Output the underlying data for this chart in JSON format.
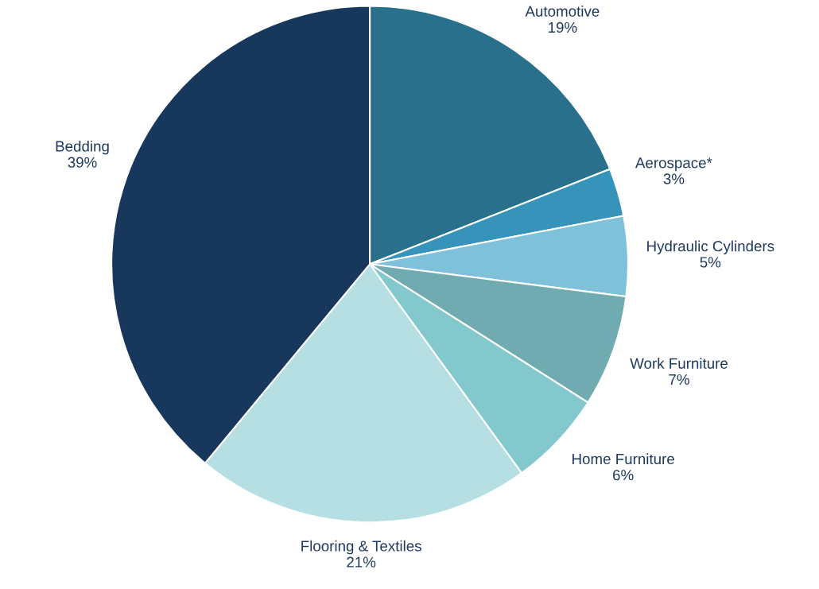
{
  "chart_data": {
    "type": "pie",
    "categories": [
      "Automotive",
      "Aerospace*",
      "Hydraulic Cylinders",
      "Work Furniture",
      "Home Furniture",
      "Flooring & Textiles",
      "Bedding"
    ],
    "values": [
      19,
      3,
      5,
      7,
      6,
      21,
      39
    ],
    "colors": [
      "#29708c",
      "#3694ba",
      "#7fc0da",
      "#6fabb1",
      "#83c8cc",
      "#b5dfe2",
      "#18375c"
    ],
    "value_labels": [
      "19%",
      "3%",
      "5%",
      "7%",
      "6%",
      "21%",
      "39%"
    ],
    "legend": false
  }
}
